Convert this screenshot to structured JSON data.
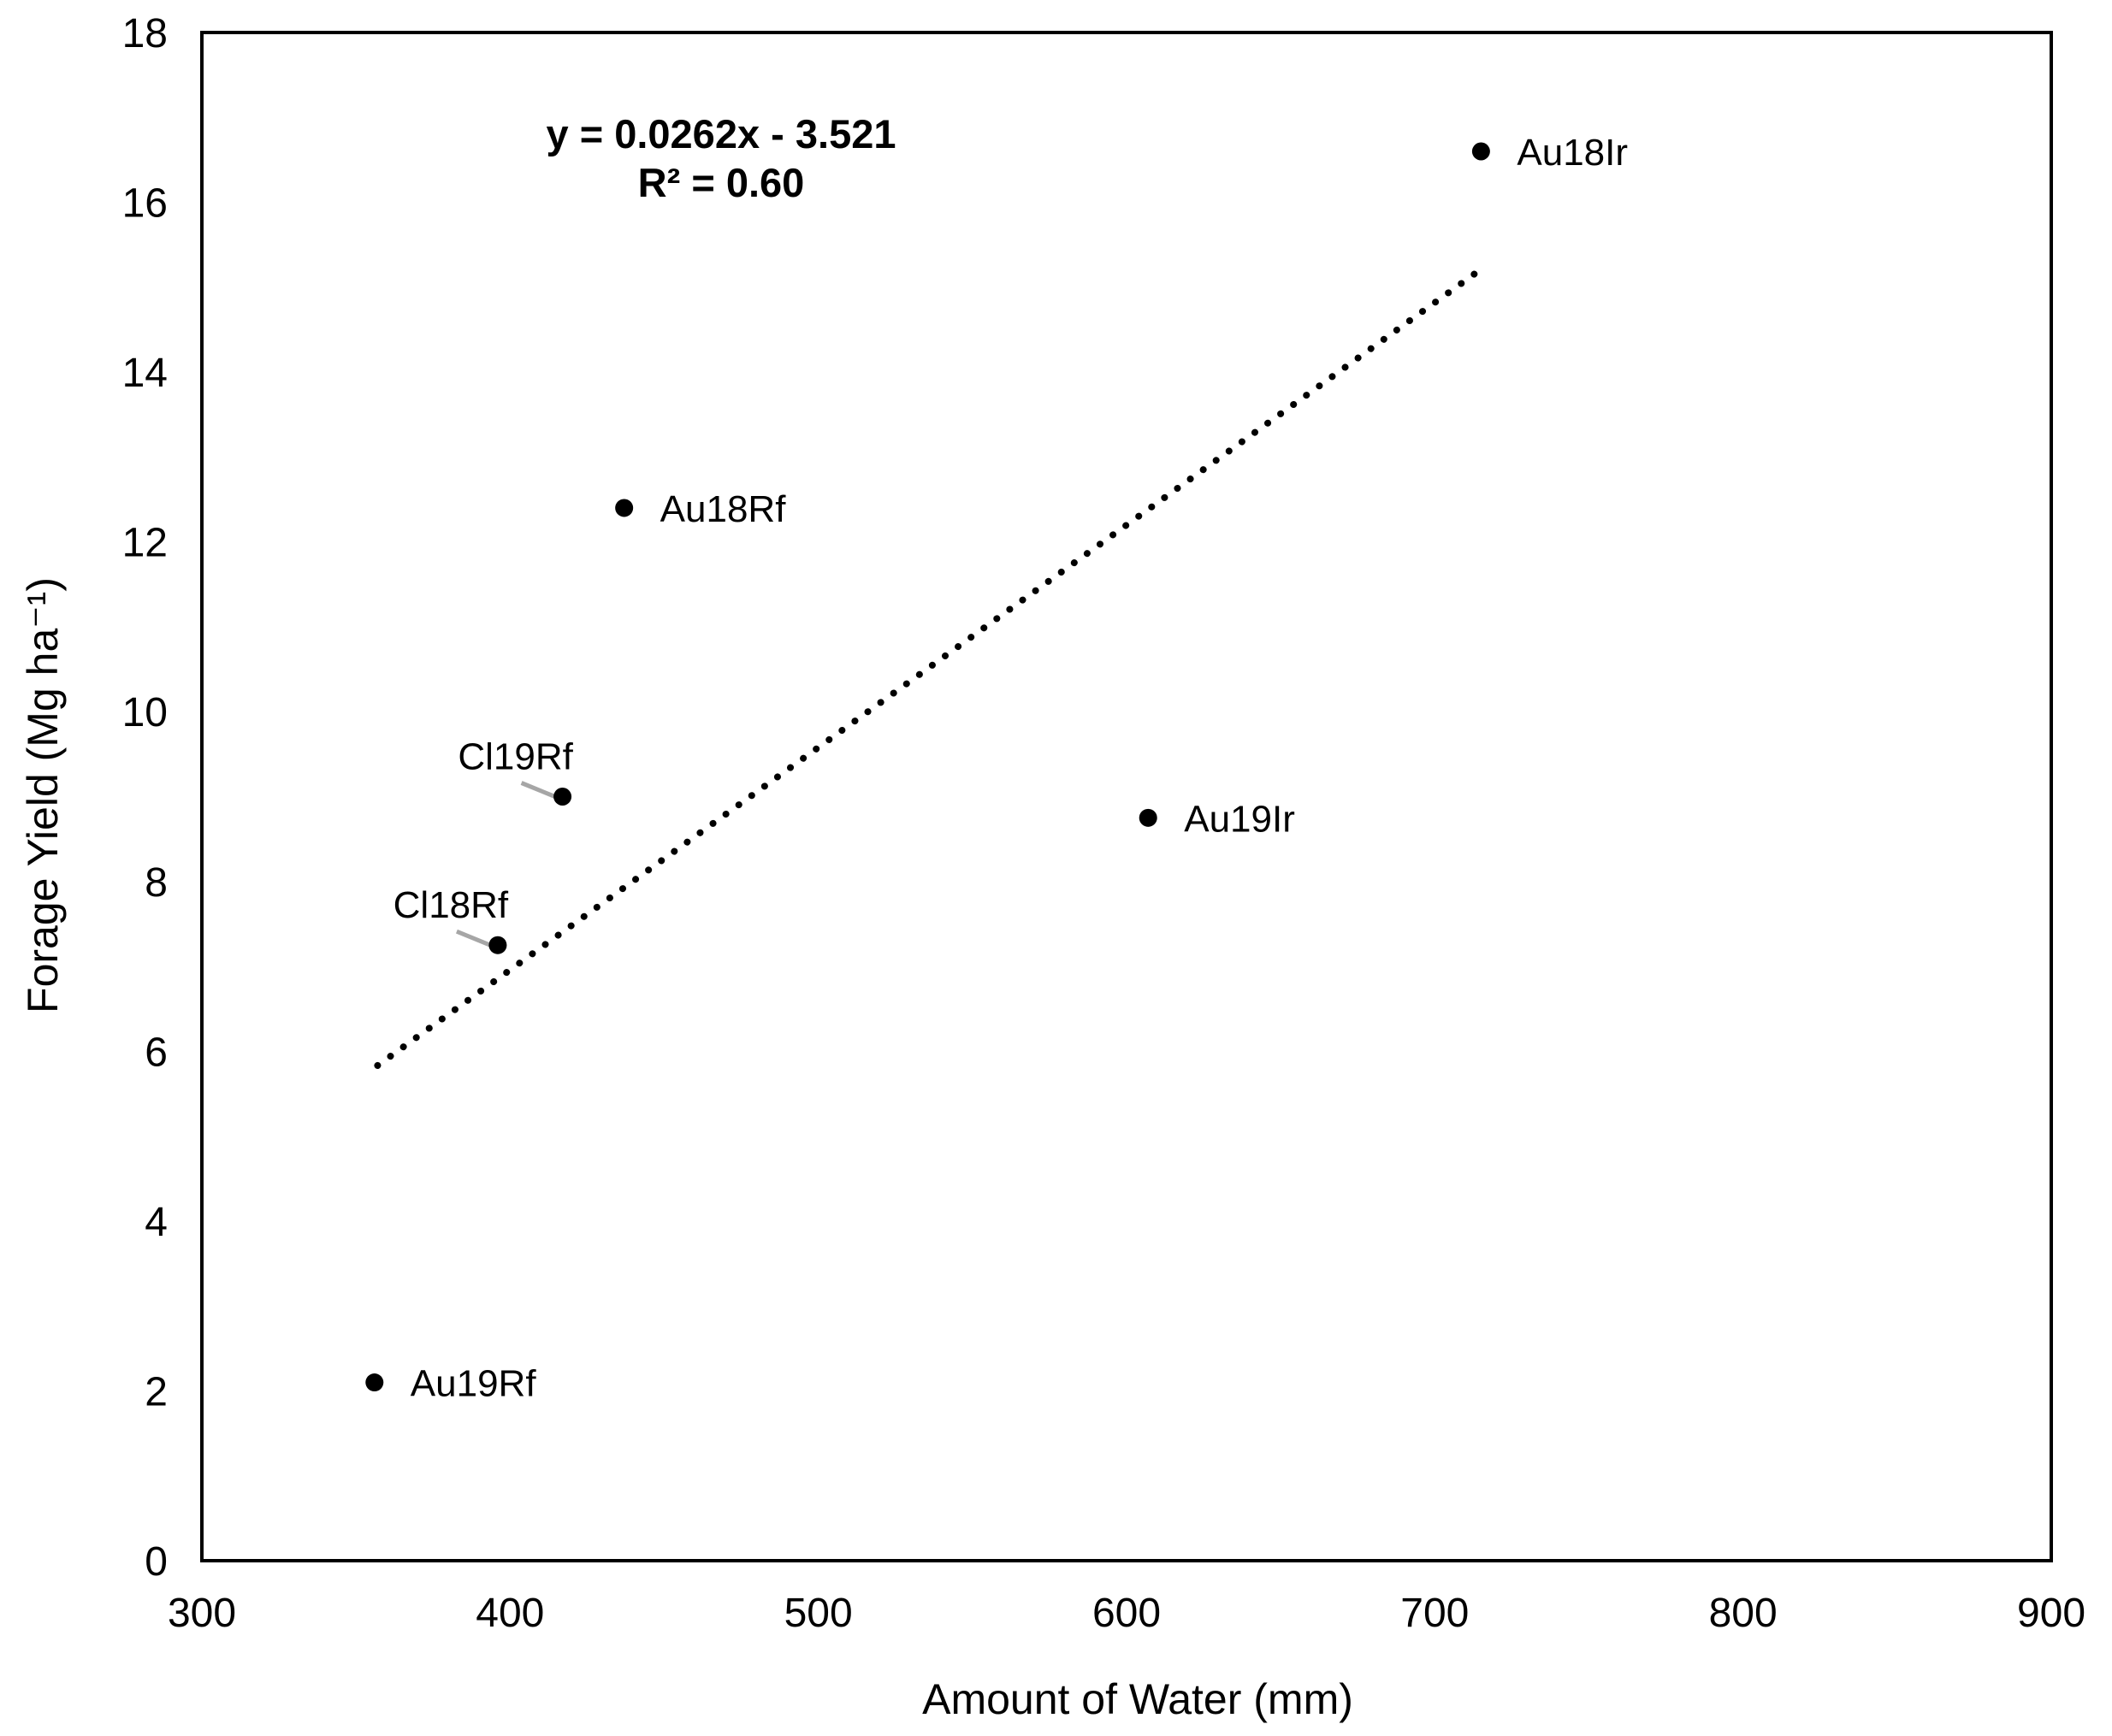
{
  "chart_data": {
    "type": "scatter",
    "title": "",
    "xlabel": "Amount of Water (mm)",
    "ylabel": "Forage Yield (Mg ha⁻¹)",
    "xlim": [
      300,
      900
    ],
    "ylim": [
      0,
      18
    ],
    "x_ticks": [
      300,
      400,
      500,
      600,
      700,
      800,
      900
    ],
    "y_ticks": [
      0,
      2,
      4,
      6,
      8,
      10,
      12,
      14,
      16,
      18
    ],
    "grid": false,
    "legend": false,
    "marker_color": "#000000",
    "leader_color": "#a6a6a6",
    "points": [
      {
        "label": "Au18Ir",
        "x": 715,
        "y": 16.6,
        "label_side": "right",
        "leader": false
      },
      {
        "label": "Au18Rf",
        "x": 437,
        "y": 12.4,
        "label_side": "right",
        "leader": false
      },
      {
        "label": "Cl19Rf",
        "x": 417,
        "y": 9.0,
        "label_side": "upper-left",
        "leader": true
      },
      {
        "label": "Au19Ir",
        "x": 607,
        "y": 8.75,
        "label_side": "right",
        "leader": false
      },
      {
        "label": "Cl18Rf",
        "x": 396,
        "y": 7.25,
        "label_side": "upper-left",
        "leader": true
      },
      {
        "label": "Au19Rf",
        "x": 356,
        "y": 2.1,
        "label_side": "right",
        "leader": false
      }
    ],
    "trendline": {
      "equation": "y = 0.0262x - 3.521",
      "r_squared": "R² = 0.60",
      "slope": 0.0262,
      "intercept": -3.521,
      "x_start": 357,
      "x_end": 716,
      "style": "dotted",
      "color": "#000000"
    }
  }
}
